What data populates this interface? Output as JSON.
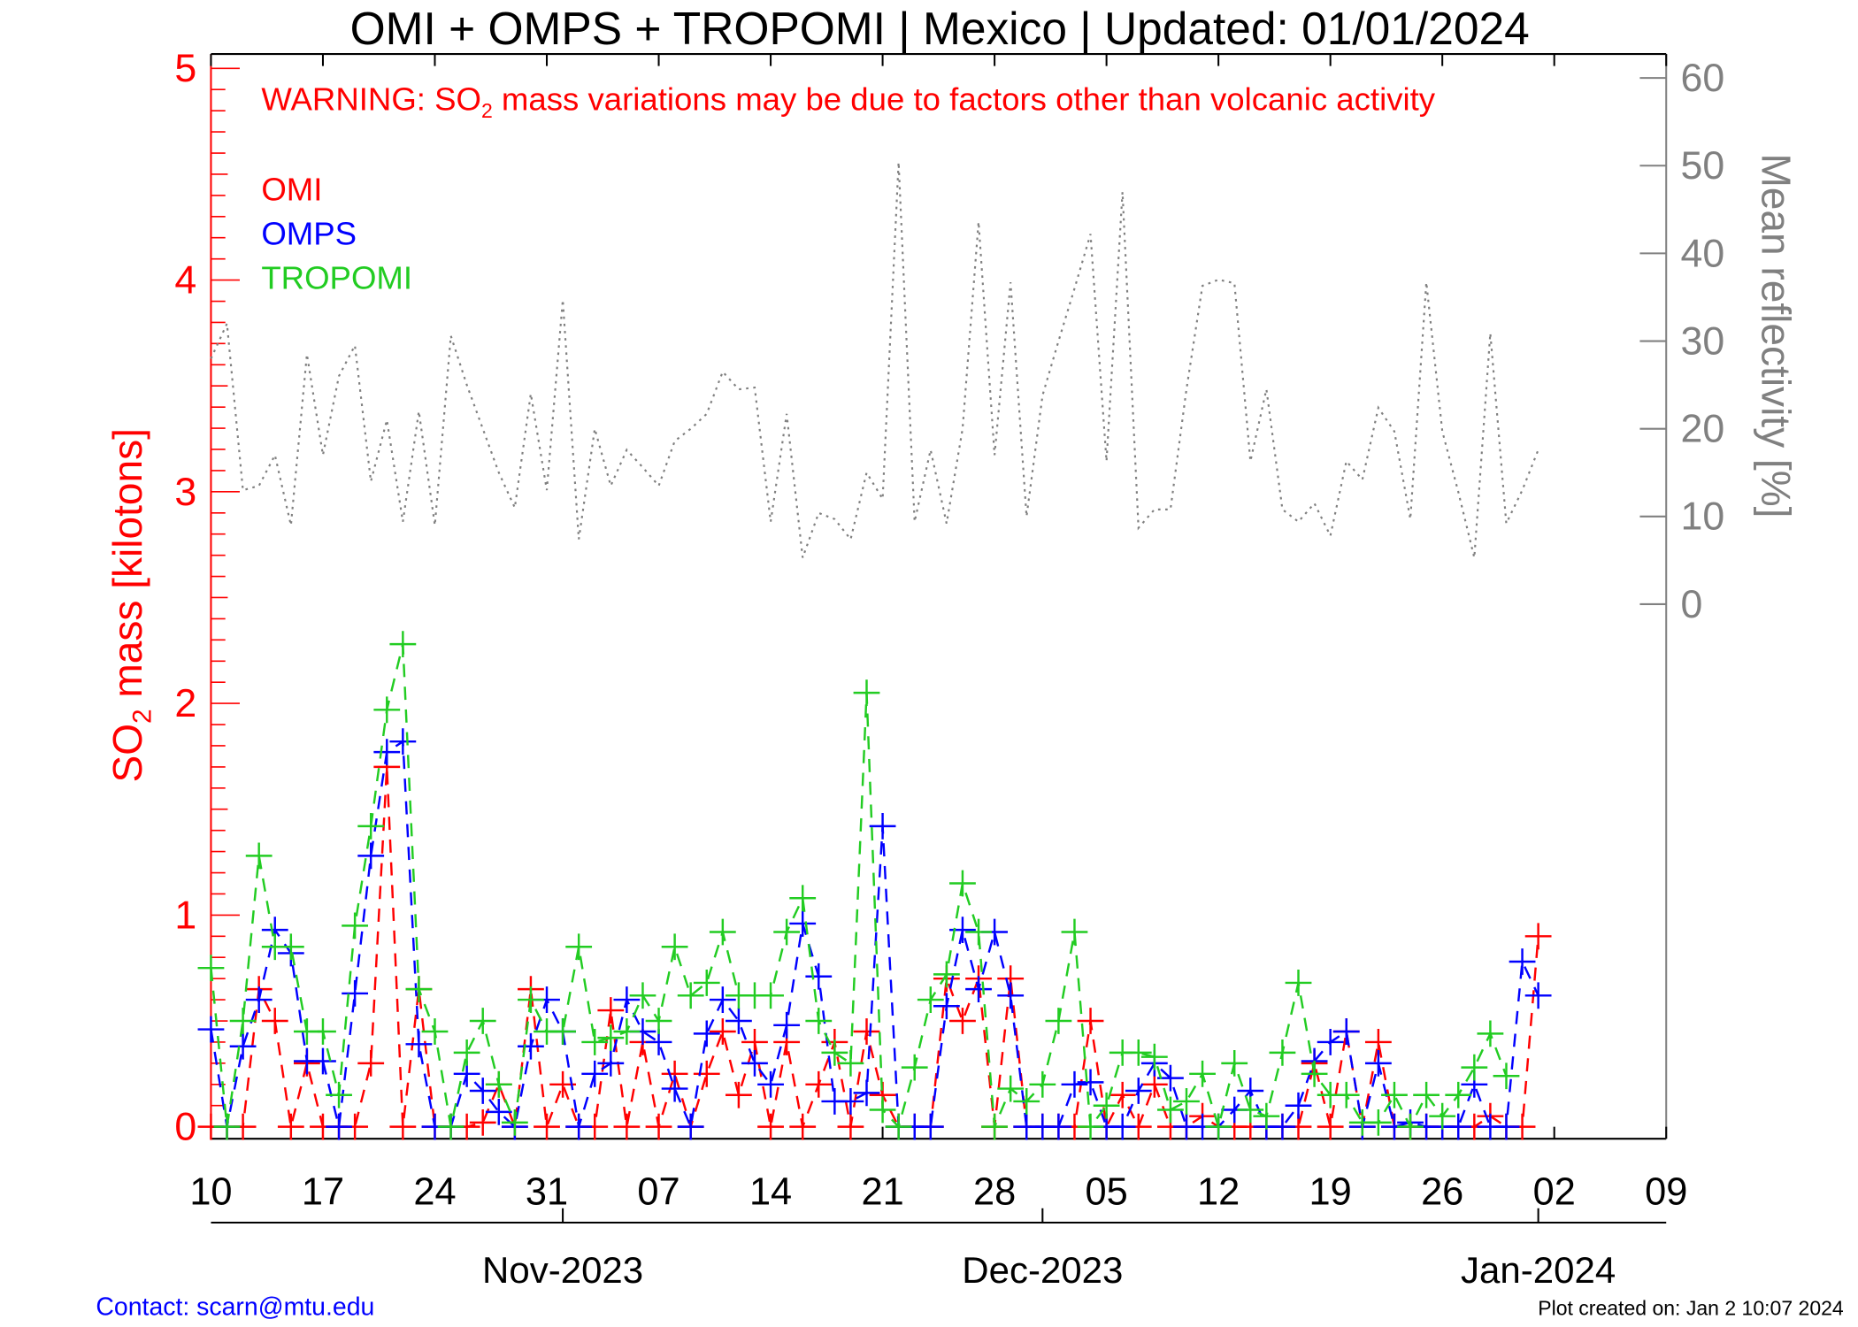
{
  "chart_data": {
    "type": "line",
    "title": "OMI + OMPS + TROPOMI | Mexico | Updated: 01/01/2024",
    "warning": {
      "prefix": "WARNING: SO",
      "sub": "2",
      "suffix": " mass variations may be due to factors other than volcanic activity"
    },
    "ylabel": {
      "prefix": "SO",
      "sub": "2",
      "suffix": " mass [kilotons]"
    },
    "ylabel_right": "Mean reflectivity [%]",
    "ylim": [
      0,
      5
    ],
    "ylim_right": [
      0,
      60
    ],
    "xlim": [
      "2023-10-10",
      "2024-01-09"
    ],
    "yticks": [
      "0",
      "1",
      "2",
      "3",
      "4",
      "5"
    ],
    "yticks_right": [
      "0",
      "10",
      "20",
      "30",
      "40",
      "50",
      "60"
    ],
    "xticks": [
      {
        "date": "2023-10-10",
        "label": "10"
      },
      {
        "date": "2023-10-17",
        "label": "17"
      },
      {
        "date": "2023-10-24",
        "label": "24"
      },
      {
        "date": "2023-10-31",
        "label": "31"
      },
      {
        "date": "2023-11-07",
        "label": "07"
      },
      {
        "date": "2023-11-14",
        "label": "14"
      },
      {
        "date": "2023-11-21",
        "label": "21"
      },
      {
        "date": "2023-11-28",
        "label": "28"
      },
      {
        "date": "2023-12-05",
        "label": "05"
      },
      {
        "date": "2023-12-12",
        "label": "12"
      },
      {
        "date": "2023-12-19",
        "label": "19"
      },
      {
        "date": "2023-12-26",
        "label": "26"
      },
      {
        "date": "2024-01-02",
        "label": "02"
      },
      {
        "date": "2024-01-09",
        "label": "09"
      }
    ],
    "month_ticks": [
      {
        "date": "2023-11-01",
        "label": "Nov-2023"
      },
      {
        "date": "2023-12-01",
        "label": "Dec-2023"
      },
      {
        "date": "2024-01-01",
        "label": "Jan-2024"
      }
    ],
    "legend_placement": "top-left",
    "x": [
      "2023-10-10",
      "2023-10-11",
      "2023-10-12",
      "2023-10-13",
      "2023-10-14",
      "2023-10-15",
      "2023-10-16",
      "2023-10-17",
      "2023-10-18",
      "2023-10-19",
      "2023-10-20",
      "2023-10-21",
      "2023-10-22",
      "2023-10-23",
      "2023-10-24",
      "2023-10-25",
      "2023-10-26",
      "2023-10-27",
      "2023-10-28",
      "2023-10-29",
      "2023-10-30",
      "2023-10-31",
      "2023-11-01",
      "2023-11-02",
      "2023-11-03",
      "2023-11-04",
      "2023-11-05",
      "2023-11-06",
      "2023-11-07",
      "2023-11-08",
      "2023-11-09",
      "2023-11-10",
      "2023-11-11",
      "2023-11-12",
      "2023-11-13",
      "2023-11-14",
      "2023-11-15",
      "2023-11-16",
      "2023-11-17",
      "2023-11-18",
      "2023-11-19",
      "2023-11-20",
      "2023-11-21",
      "2023-11-22",
      "2023-11-23",
      "2023-11-24",
      "2023-11-25",
      "2023-11-26",
      "2023-11-27",
      "2023-11-28",
      "2023-11-29",
      "2023-11-30",
      "2023-12-01",
      "2023-12-02",
      "2023-12-03",
      "2023-12-04",
      "2023-12-05",
      "2023-12-06",
      "2023-12-07",
      "2023-12-08",
      "2023-12-09",
      "2023-12-10",
      "2023-12-11",
      "2023-12-12",
      "2023-12-13",
      "2023-12-14",
      "2023-12-15",
      "2023-12-16",
      "2023-12-17",
      "2023-12-18",
      "2023-12-19",
      "2023-12-20",
      "2023-12-21",
      "2023-12-22",
      "2023-12-23",
      "2023-12-24",
      "2023-12-25",
      "2023-12-26",
      "2023-12-27",
      "2023-12-28",
      "2023-12-29",
      "2023-12-30",
      "2023-12-31",
      "2024-01-01"
    ],
    "series": [
      {
        "name": "OMI",
        "color": "#ff0000",
        "axis": "left",
        "values": [
          0,
          0,
          0,
          0.65,
          0.5,
          0,
          0.3,
          0,
          0,
          0,
          0.3,
          1.7,
          0,
          0.65,
          0,
          0,
          0,
          0.02,
          0.2,
          0,
          0.65,
          0,
          0.2,
          0,
          0,
          0.55,
          0,
          0.4,
          0,
          0.25,
          0,
          0.25,
          0.45,
          0.15,
          0.4,
          0,
          0.4,
          0,
          0.2,
          0.4,
          0,
          0.45,
          0.15,
          0,
          0,
          0,
          0.7,
          0.5,
          0.7,
          0,
          0.7,
          0,
          0,
          0,
          0,
          0.5,
          0,
          0.15,
          0,
          0.2,
          0,
          0,
          0.05,
          0,
          0,
          0,
          0,
          0,
          0,
          0.3,
          0,
          0.45,
          0,
          0.4,
          0,
          0,
          0,
          0,
          0,
          0,
          0.05,
          0,
          0,
          0.9
        ]
      },
      {
        "name": "OMPS",
        "color": "#0000ff",
        "axis": "left",
        "values": [
          0.46,
          0,
          0.38,
          0.6,
          0.93,
          0.82,
          0.31,
          0.31,
          0,
          0.63,
          1.28,
          1.77,
          1.82,
          0.39,
          0,
          0,
          0.25,
          0.17,
          0.07,
          0,
          0.38,
          0.6,
          0.45,
          0,
          0.25,
          0.3,
          0.6,
          0.45,
          0.4,
          0.18,
          0,
          0.44,
          0.6,
          0.5,
          0.3,
          0.2,
          0.48,
          0.96,
          0.71,
          0.12,
          0.12,
          0.16,
          1.42,
          0,
          0,
          0,
          0.57,
          0.93,
          0.65,
          0.92,
          0.62,
          0,
          0,
          0,
          0.2,
          0.21,
          0,
          0,
          0.17,
          0.3,
          0.23,
          0,
          0,
          0,
          0.08,
          0.17,
          0,
          0,
          0.1,
          0.31,
          0.4,
          0.45,
          0,
          0.3,
          0,
          0.02,
          0,
          0,
          0,
          0.2,
          0,
          0,
          0.78,
          0.62
        ]
      },
      {
        "name": "TROPOMI",
        "color": "#22cc22",
        "axis": "left",
        "values": [
          0.75,
          0,
          0.5,
          1.28,
          0.85,
          0.85,
          0.45,
          0.45,
          0.15,
          0.95,
          1.42,
          1.97,
          2.28,
          0.65,
          0.45,
          0,
          0.35,
          0.5,
          0.2,
          0.02,
          0.6,
          0.45,
          0.45,
          0.85,
          0.4,
          0.42,
          0.45,
          0.62,
          0.5,
          0.85,
          0.62,
          0.68,
          0.92,
          0.62,
          0.62,
          0.62,
          0.92,
          1.08,
          0.5,
          0.35,
          0.3,
          2.05,
          0.08,
          0,
          0.28,
          0.6,
          0.72,
          1.15,
          0.92,
          0,
          0.18,
          0.12,
          0.2,
          0.5,
          0.92,
          0,
          0.1,
          0.35,
          0.35,
          0.33,
          0.08,
          0.12,
          0.25,
          0,
          0.3,
          0.08,
          0.05,
          0.35,
          0.68,
          0.25,
          0.15,
          0.15,
          0.02,
          0.02,
          0.15,
          0,
          0.15,
          0.05,
          0.15,
          0.28,
          0.44,
          0.24,
          null,
          null
        ]
      },
      {
        "color": "#808080",
        "axis": "right",
        "style": "dotted",
        "values": [
          28,
          32,
          13,
          13.5,
          17,
          9,
          28.5,
          17,
          26,
          29.5,
          14,
          21,
          9.4,
          22,
          9,
          30.6,
          25,
          20,
          15,
          11,
          24,
          13,
          34.7,
          7.4,
          20,
          13.5,
          17.6,
          15.6,
          13.5,
          18.6,
          20,
          21.7,
          26.5,
          24.5,
          24.7,
          9.4,
          21.7,
          5.3,
          10.4,
          9.7,
          7.4,
          15,
          12,
          50.4,
          9.4,
          17.6,
          9.2,
          20,
          43.6,
          17,
          36.7,
          10,
          23.8,
          30,
          36,
          42.2,
          16.3,
          47,
          8.7,
          10.8,
          10.8,
          24.5,
          36.3,
          37,
          36.6,
          16.3,
          24.5,
          10.8,
          9.4,
          11.5,
          7.8,
          16.3,
          14.2,
          22.4,
          19.7,
          9.7,
          36.7,
          19.7,
          12.8,
          5.3,
          30.9,
          9.2,
          13,
          17.6
        ]
      }
    ]
  },
  "footer": {
    "contact": "Contact: scarn@mtu.edu",
    "created": "Plot created on: Jan  2 10:07 2024"
  }
}
